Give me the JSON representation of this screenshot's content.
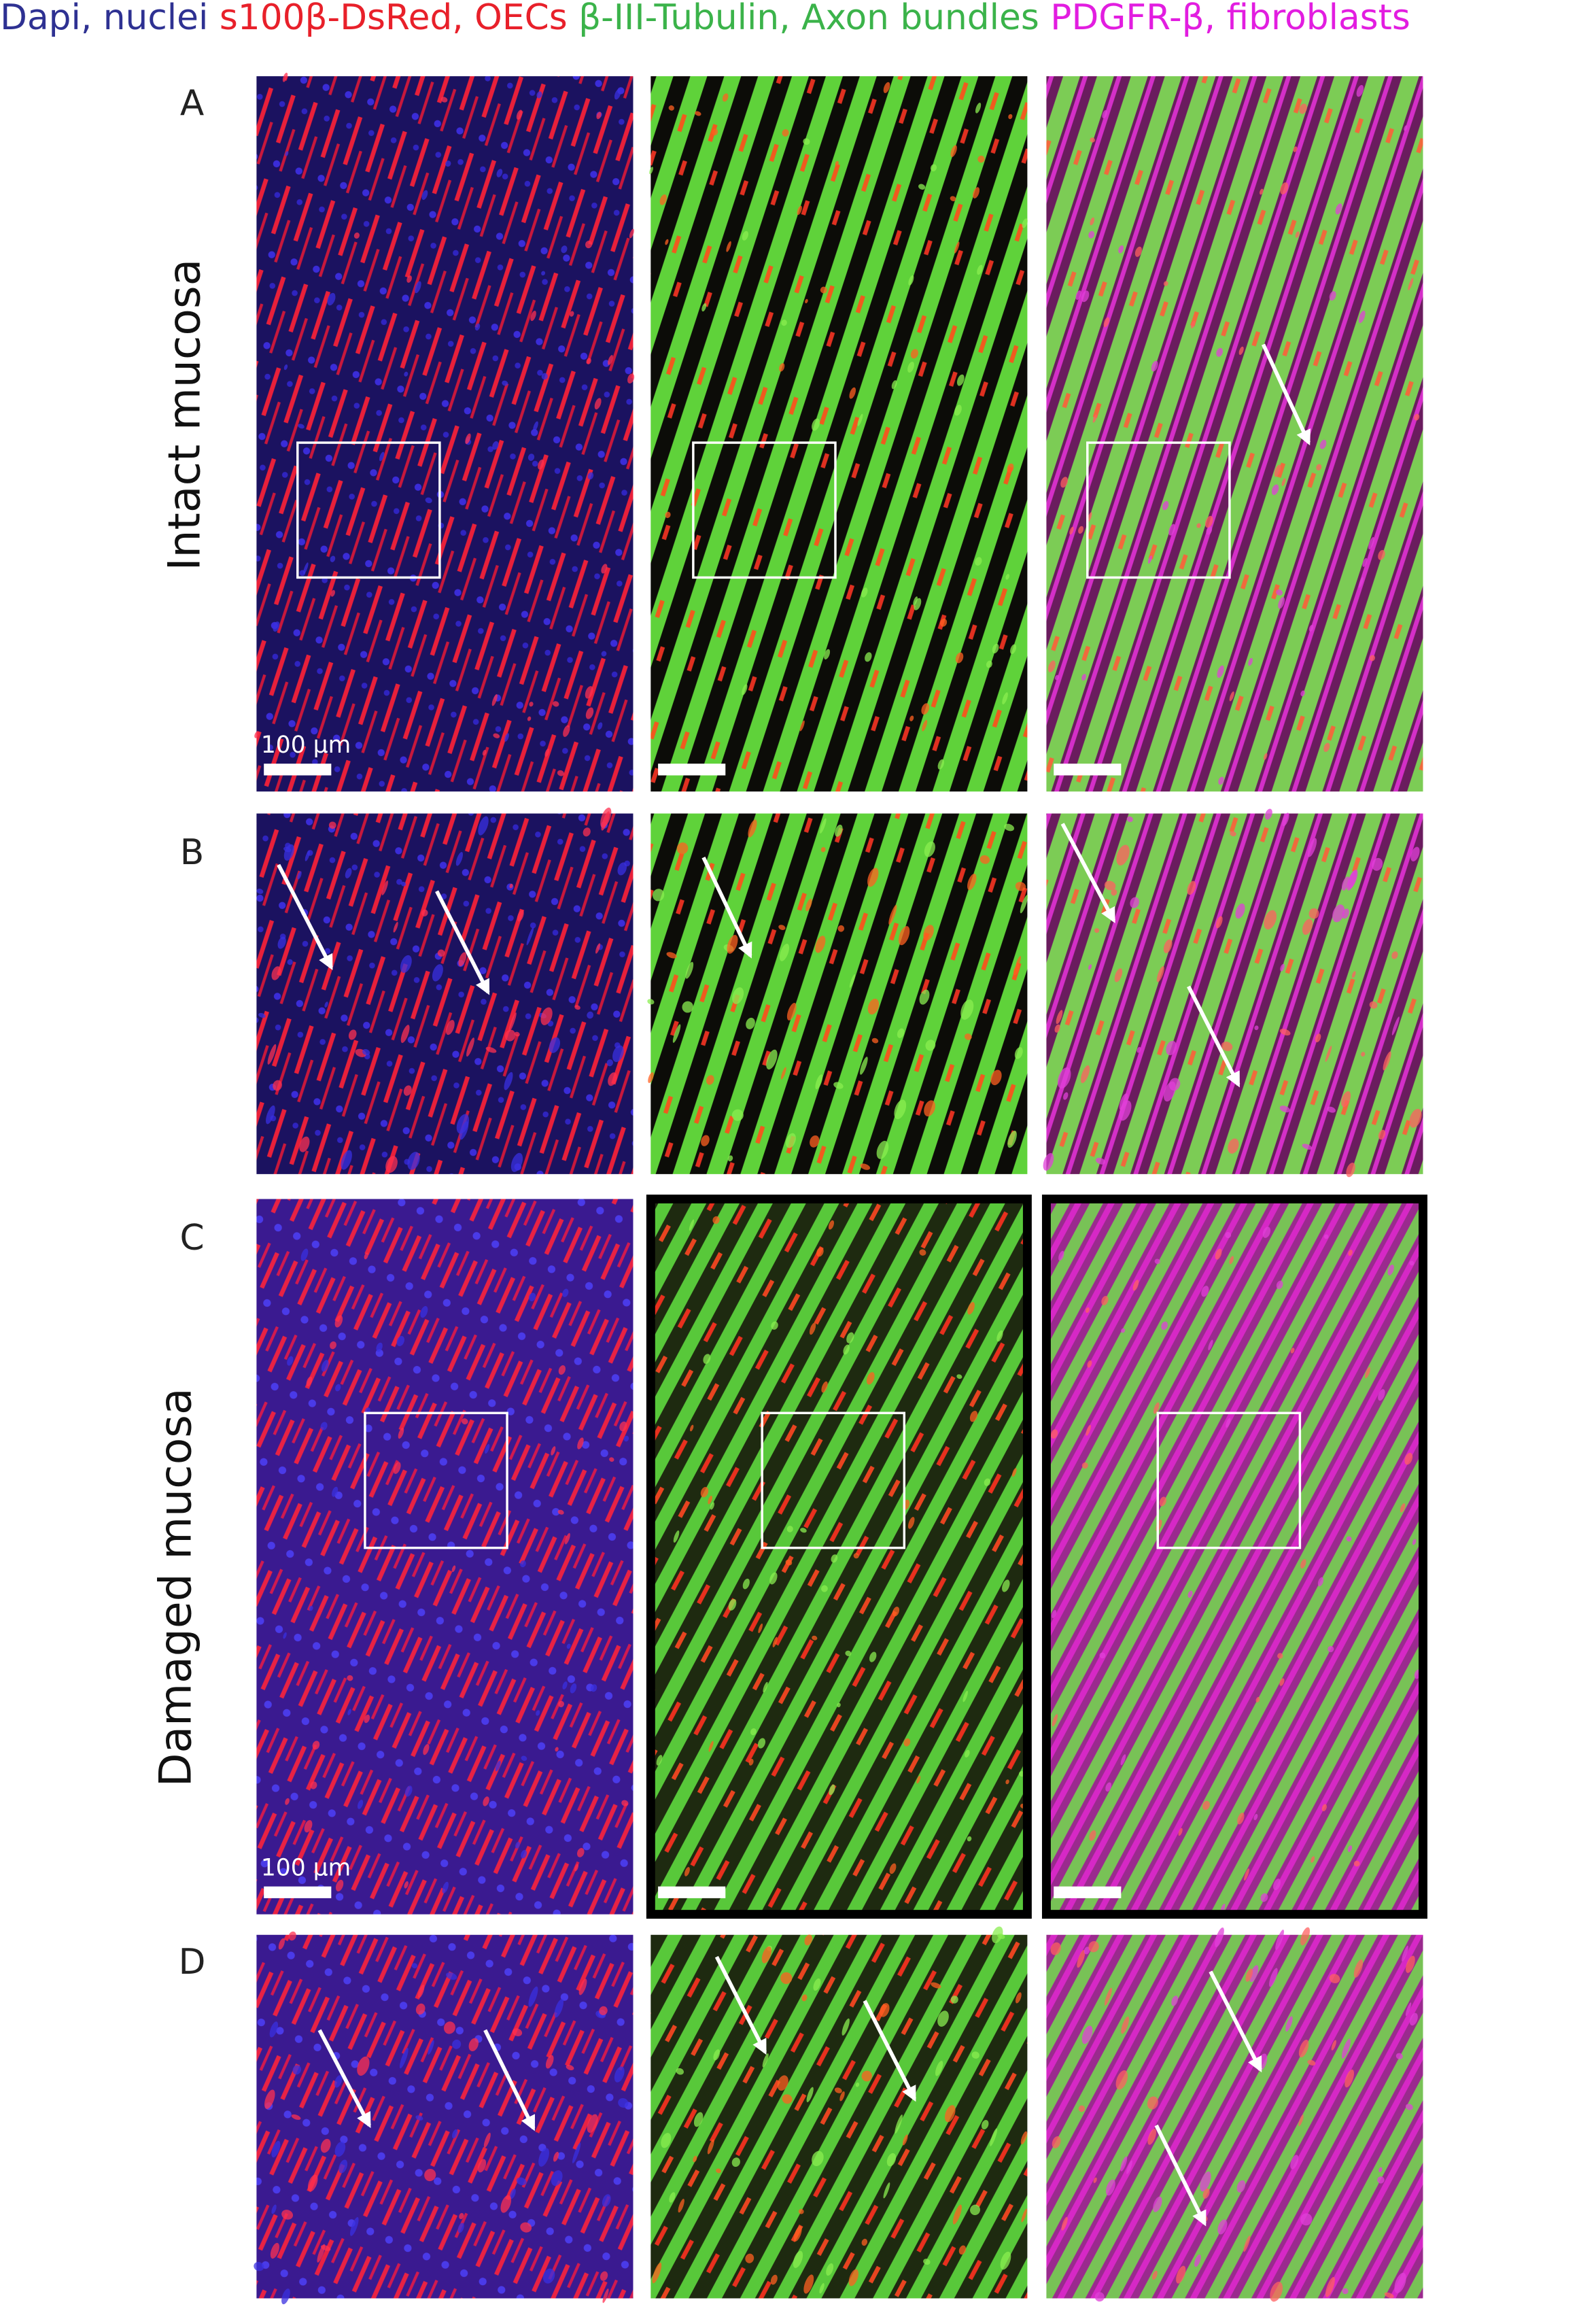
{
  "legend": [
    "Dapi, nuclei",
    "s100β-DsRed, OECs",
    "β-III-Tubulin, Axon bundles",
    "PDGFR-β, fibroblasts"
  ],
  "panels": [
    {
      "label": "A",
      "row_label": "Intact mucosa",
      "scale_bar": "100 μm"
    },
    {
      "label": "B"
    },
    {
      "label": "C",
      "row_label": "Damaged mucosa",
      "scale_bar": "100 μm"
    },
    {
      "label": "D"
    }
  ]
}
